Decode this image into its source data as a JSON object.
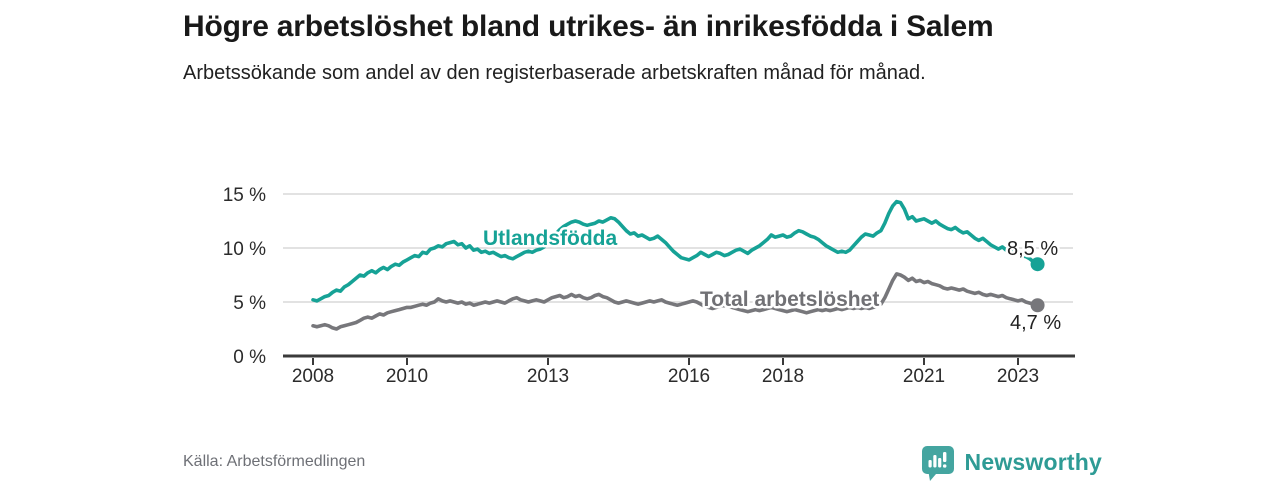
{
  "header": {
    "title": "Högre arbetslöshet bland utrikes- än inrikesfödda i Salem",
    "subtitle": "Arbetssökande som andel av den registerbaserade arbetskraften månad för månad."
  },
  "footer": {
    "source": "Källa: Arbetsförmedlingen",
    "logo_text": "Newsworthy"
  },
  "colors": {
    "accent_teal": "#16a296",
    "line_gray": "#77777b",
    "gray_label": "#717175",
    "grid": "#d9d9d9",
    "axis": "#3a3a3a",
    "tick_text": "#2b2b2b",
    "end_label_text": "#222222",
    "logo_teal": "#44a5a0",
    "logo_text_teal": "#2e9b95"
  },
  "chart_data": {
    "type": "line",
    "title": "Högre arbetslöshet bland utrikes- än inrikesfödda i Salem",
    "subtitle": "Arbetssökande som andel av den registerbaserade arbetskraften månad för månad.",
    "x_unit": "month",
    "x_start": "2008-01",
    "x_end": "2023-06",
    "x_tick_values": [
      2008,
      2010,
      2013,
      2016,
      2018,
      2021,
      2023
    ],
    "x_tick_labels": [
      "2008",
      "2010",
      "2013",
      "2016",
      "2018",
      "2021",
      "2023"
    ],
    "y_tick_values": [
      0,
      5,
      10,
      15
    ],
    "y_tick_labels": [
      "0 %",
      "5 %",
      "10 %",
      "15 %"
    ],
    "ylim": [
      0,
      15
    ],
    "grid": "horizontal",
    "legend": "inline-labels",
    "series": [
      {
        "name": "Utlandsfödda",
        "color": "#16a296",
        "end_label": "8,5 %",
        "end_value": 8.5,
        "values": [
          5.2,
          5.1,
          5.3,
          5.5,
          5.6,
          5.9,
          6.1,
          6.0,
          6.4,
          6.6,
          6.9,
          7.2,
          7.5,
          7.4,
          7.7,
          7.9,
          7.7,
          8.0,
          8.2,
          8.0,
          8.3,
          8.5,
          8.4,
          8.7,
          8.9,
          9.1,
          9.3,
          9.2,
          9.6,
          9.5,
          9.9,
          10.0,
          10.2,
          10.1,
          10.4,
          10.5,
          10.6,
          10.3,
          10.4,
          10.0,
          10.2,
          9.8,
          9.9,
          9.6,
          9.7,
          9.5,
          9.6,
          9.4,
          9.2,
          9.3,
          9.1,
          9.0,
          9.2,
          9.4,
          9.6,
          9.7,
          9.6,
          9.8,
          9.9,
          10.1,
          10.4,
          10.8,
          11.3,
          11.7,
          12.0,
          12.2,
          12.4,
          12.5,
          12.4,
          12.2,
          12.1,
          12.2,
          12.3,
          12.5,
          12.4,
          12.6,
          12.8,
          12.7,
          12.4,
          12.0,
          11.6,
          11.3,
          11.4,
          11.1,
          11.2,
          11.0,
          10.8,
          10.9,
          11.1,
          10.8,
          10.5,
          10.1,
          9.7,
          9.4,
          9.1,
          9.0,
          8.9,
          9.1,
          9.3,
          9.6,
          9.4,
          9.2,
          9.4,
          9.6,
          9.5,
          9.3,
          9.4,
          9.6,
          9.8,
          9.9,
          9.7,
          9.5,
          9.8,
          10.0,
          10.2,
          10.5,
          10.8,
          11.2,
          11.0,
          11.1,
          11.2,
          11.0,
          11.1,
          11.4,
          11.6,
          11.5,
          11.3,
          11.1,
          11.0,
          10.8,
          10.5,
          10.2,
          10.0,
          9.8,
          9.6,
          9.7,
          9.6,
          9.8,
          10.2,
          10.6,
          11.0,
          11.3,
          11.2,
          11.1,
          11.4,
          11.6,
          12.3,
          13.2,
          13.9,
          14.3,
          14.2,
          13.6,
          12.7,
          12.9,
          12.5,
          12.6,
          12.7,
          12.5,
          12.3,
          12.5,
          12.2,
          12.0,
          11.8,
          11.7,
          11.9,
          11.6,
          11.4,
          11.5,
          11.2,
          10.9,
          10.7,
          10.9,
          10.6,
          10.3,
          10.1,
          9.9,
          10.1,
          9.8,
          9.6,
          9.7,
          9.5,
          9.3,
          9.2,
          9.0,
          8.7,
          8.5
        ]
      },
      {
        "name": "Total arbetslöshet",
        "color": "#77777b",
        "end_label": "4,7 %",
        "end_value": 4.7,
        "values": [
          2.8,
          2.7,
          2.8,
          2.9,
          2.8,
          2.6,
          2.5,
          2.7,
          2.8,
          2.9,
          3.0,
          3.1,
          3.3,
          3.5,
          3.6,
          3.5,
          3.7,
          3.9,
          3.8,
          4.0,
          4.1,
          4.2,
          4.3,
          4.4,
          4.5,
          4.5,
          4.6,
          4.7,
          4.8,
          4.7,
          4.9,
          5.0,
          5.3,
          5.1,
          5.0,
          5.1,
          5.0,
          4.9,
          5.0,
          4.8,
          4.9,
          4.7,
          4.8,
          4.9,
          5.0,
          4.9,
          5.0,
          5.1,
          5.0,
          4.9,
          5.1,
          5.3,
          5.4,
          5.2,
          5.1,
          5.0,
          5.1,
          5.2,
          5.1,
          5.0,
          5.2,
          5.4,
          5.5,
          5.6,
          5.4,
          5.5,
          5.7,
          5.5,
          5.6,
          5.4,
          5.3,
          5.4,
          5.6,
          5.7,
          5.5,
          5.4,
          5.2,
          5.0,
          4.9,
          5.0,
          5.1,
          5.0,
          4.9,
          4.8,
          4.9,
          5.0,
          5.1,
          5.0,
          5.1,
          5.2,
          5.0,
          4.9,
          4.8,
          4.7,
          4.8,
          4.9,
          5.0,
          5.1,
          5.0,
          4.8,
          4.6,
          4.5,
          4.4,
          4.5,
          4.6,
          4.7,
          4.6,
          4.5,
          4.4,
          4.3,
          4.2,
          4.1,
          4.2,
          4.3,
          4.2,
          4.3,
          4.4,
          4.5,
          4.4,
          4.3,
          4.2,
          4.1,
          4.2,
          4.3,
          4.2,
          4.1,
          4.0,
          4.1,
          4.2,
          4.3,
          4.2,
          4.3,
          4.2,
          4.3,
          4.4,
          4.3,
          4.4,
          4.5,
          4.4,
          4.5,
          4.4,
          4.5,
          4.4,
          4.5,
          4.6,
          4.8,
          5.4,
          6.2,
          7.0,
          7.6,
          7.5,
          7.3,
          7.0,
          7.2,
          6.9,
          7.0,
          6.8,
          6.9,
          6.7,
          6.6,
          6.5,
          6.3,
          6.2,
          6.3,
          6.2,
          6.1,
          6.2,
          6.0,
          5.9,
          5.8,
          5.9,
          5.7,
          5.6,
          5.7,
          5.6,
          5.5,
          5.6,
          5.4,
          5.3,
          5.2,
          5.1,
          5.2,
          5.0,
          4.9,
          4.8,
          4.7
        ]
      }
    ]
  }
}
